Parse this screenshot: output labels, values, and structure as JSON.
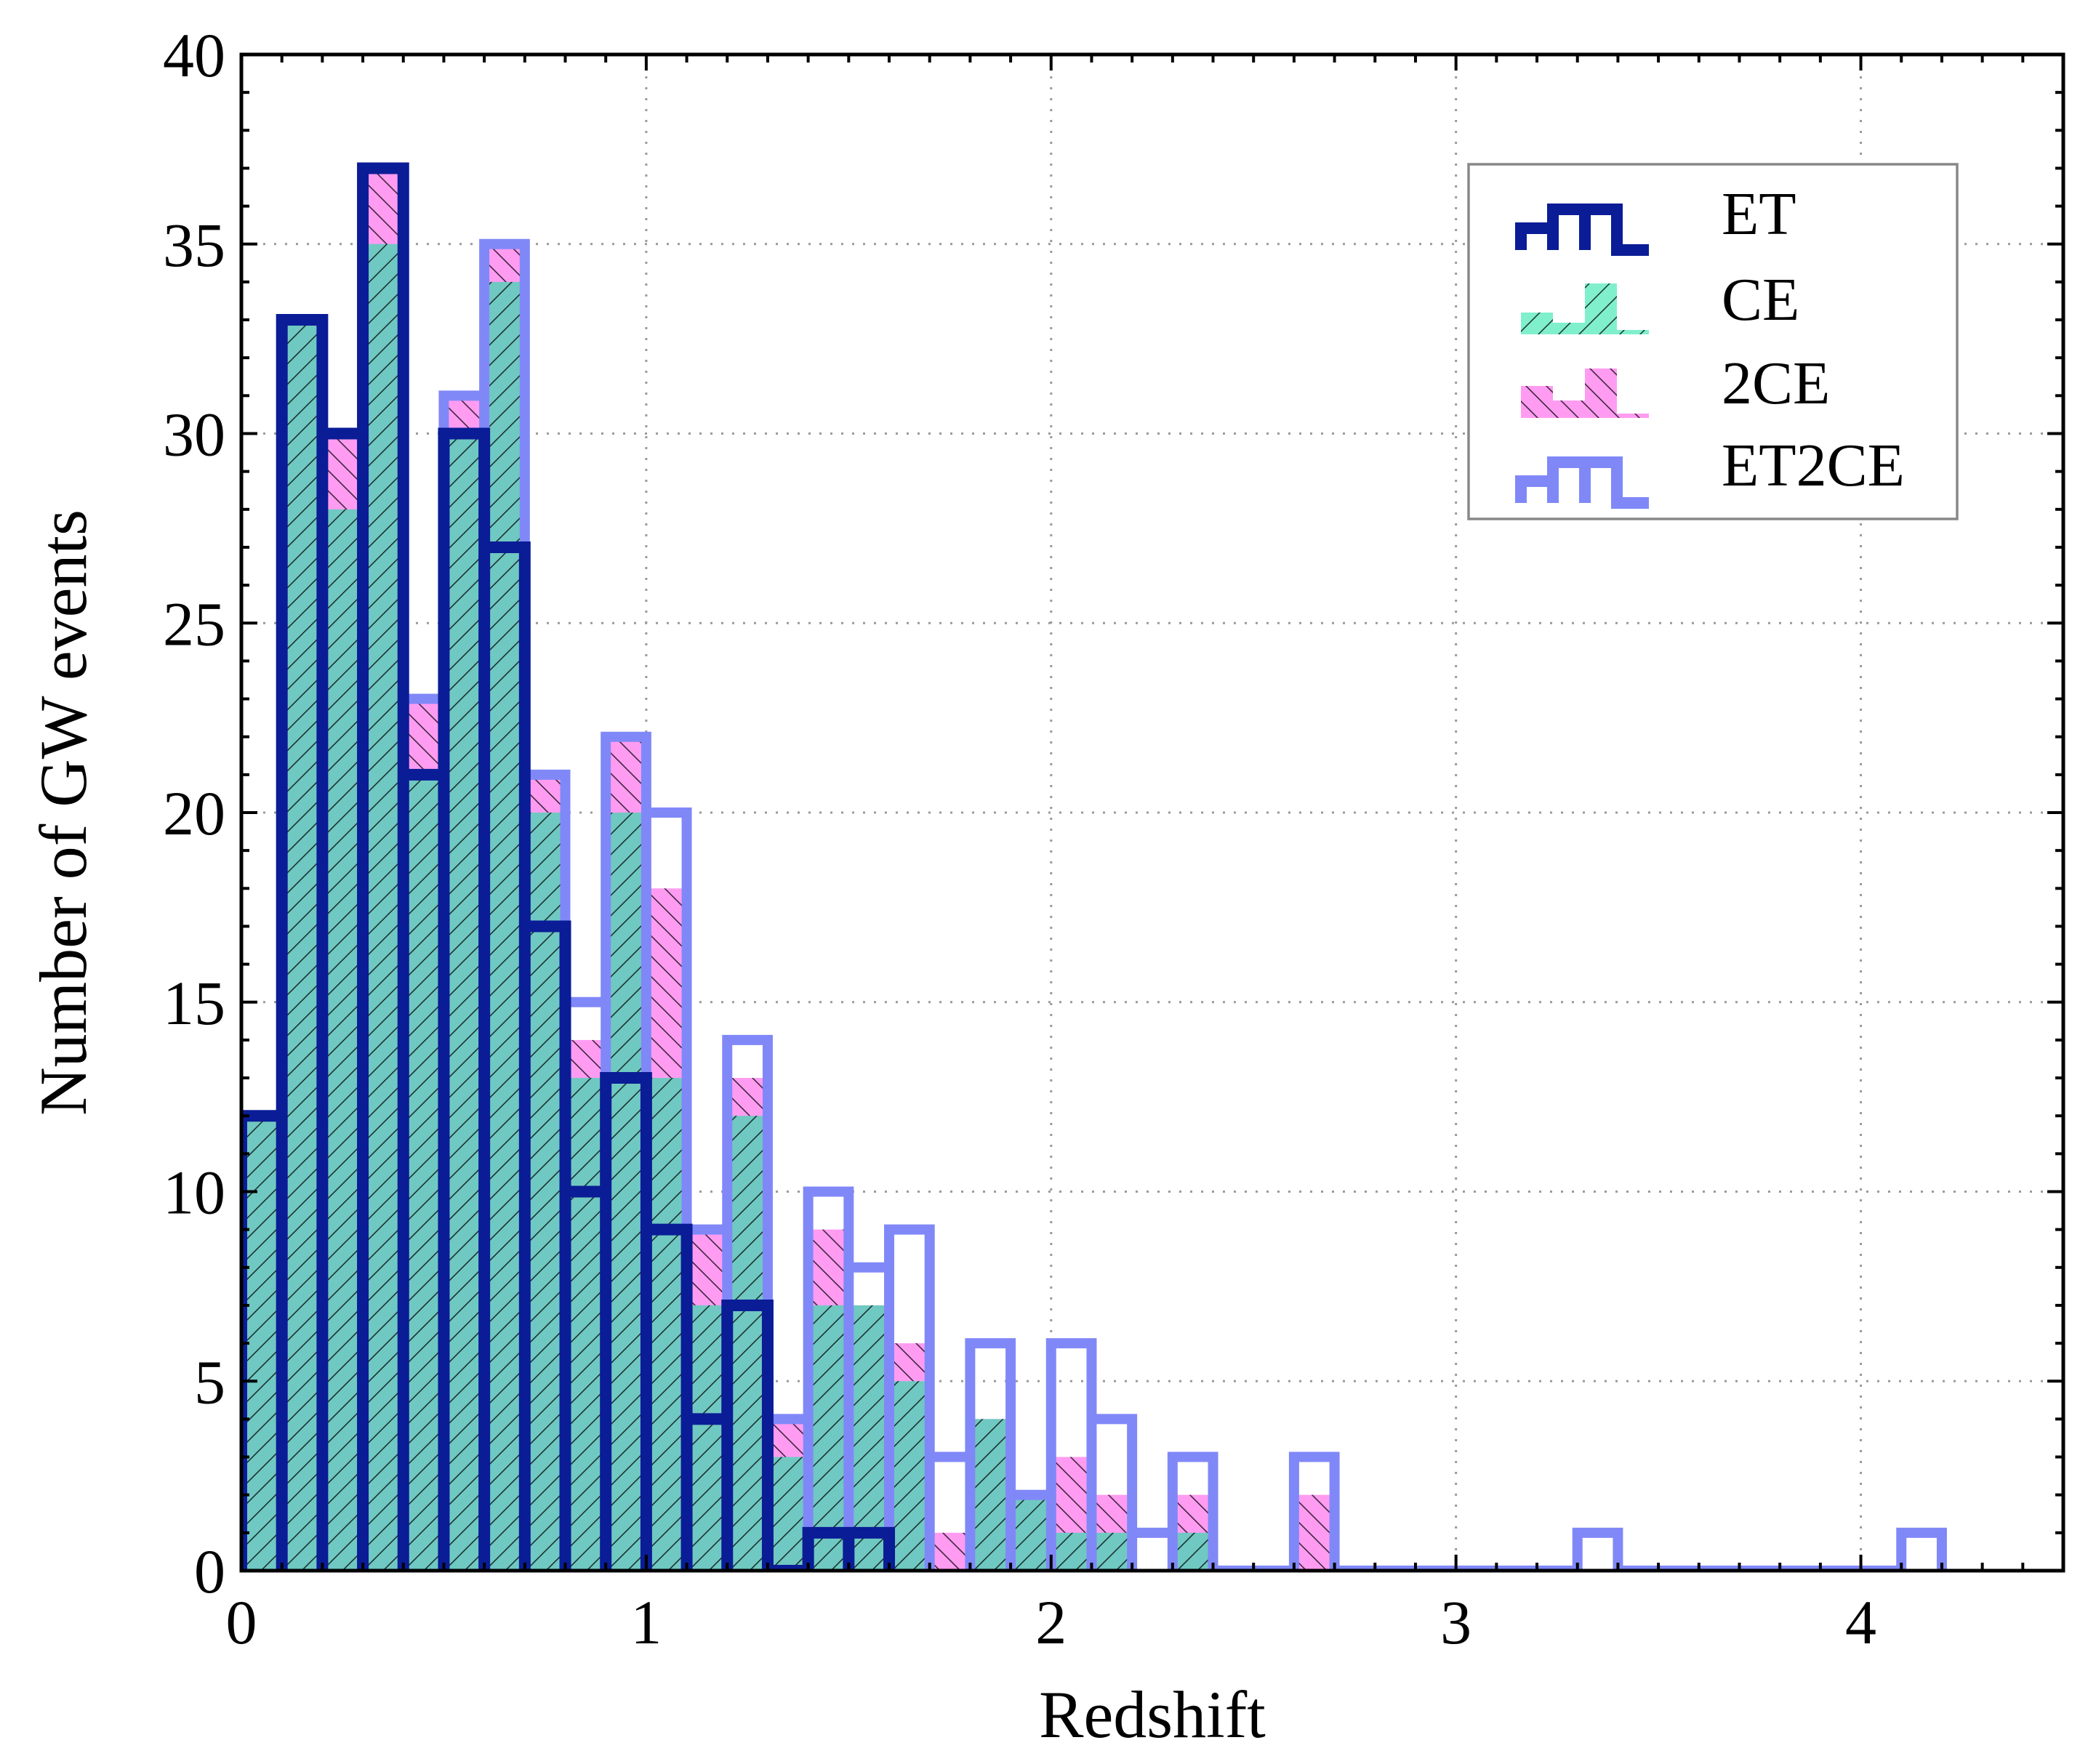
{
  "chart_data": {
    "type": "histogram",
    "xlabel": "Redshift",
    "ylabel": "Number of GW events",
    "xlim": [
      0,
      4.5
    ],
    "ylim": [
      0,
      40
    ],
    "grid": true,
    "legend_position": "top-right",
    "bin_width": 0.1,
    "x_ticks": [
      0,
      1,
      2,
      3,
      4
    ],
    "x_tick_labels": [
      "0",
      "1",
      "2",
      "3",
      "4"
    ],
    "y_ticks": [
      0,
      5,
      10,
      15,
      20,
      25,
      30,
      35,
      40
    ],
    "y_tick_labels": [
      "0",
      "5",
      "10",
      "15",
      "20",
      "25",
      "30",
      "35",
      "40"
    ],
    "colors": {
      "ET": "#0a1c96",
      "CE_fill": "#80f0cc",
      "2CE_fill": "#ff9cf2",
      "ET2CE": "#8088f8",
      "overlap": "#70c8c2"
    },
    "series": [
      {
        "name": "ET",
        "style": "step-outline",
        "bin_edges": [
          0,
          0.1,
          0.2,
          0.3,
          0.4,
          0.5,
          0.6,
          0.7,
          0.8,
          0.9,
          1.0,
          1.1,
          1.2,
          1.3,
          1.4,
          1.5,
          1.6
        ],
        "values": [
          12,
          33,
          30,
          37,
          21,
          30,
          27,
          17,
          10,
          13,
          9,
          4,
          7,
          0,
          1,
          1
        ]
      },
      {
        "name": "CE",
        "style": "filled-hatched",
        "bin_edges": [
          0,
          0.1,
          0.2,
          0.3,
          0.4,
          0.5,
          0.6,
          0.7,
          0.8,
          0.9,
          1.0,
          1.1,
          1.2,
          1.3,
          1.4,
          1.5,
          1.6,
          1.7,
          1.8,
          1.9,
          2.0,
          2.1,
          2.2,
          2.3,
          2.4
        ],
        "values": [
          12,
          33,
          28,
          35,
          21,
          30,
          34,
          20,
          13,
          20,
          13,
          7,
          12,
          3,
          7,
          7,
          5,
          0,
          4,
          2,
          1,
          1,
          0,
          1
        ]
      },
      {
        "name": "2CE",
        "style": "filled-hatched",
        "bin_edges": [
          0,
          0.1,
          0.2,
          0.3,
          0.4,
          0.5,
          0.6,
          0.7,
          0.8,
          0.9,
          1.0,
          1.1,
          1.2,
          1.3,
          1.4,
          1.5,
          1.6,
          1.7,
          1.8,
          1.9,
          2.0,
          2.1,
          2.2,
          2.3,
          2.4,
          2.5,
          2.6,
          2.7
        ],
        "values": [
          12,
          33,
          30,
          37,
          23,
          31,
          35,
          21,
          14,
          22,
          18,
          9,
          13,
          4,
          9,
          7,
          6,
          1,
          4,
          2,
          3,
          2,
          0,
          2,
          0,
          0,
          2
        ]
      },
      {
        "name": "ET2CE",
        "style": "step-outline",
        "bin_edges": [
          0,
          0.1,
          0.2,
          0.3,
          0.4,
          0.5,
          0.6,
          0.7,
          0.8,
          0.9,
          1.0,
          1.1,
          1.2,
          1.3,
          1.4,
          1.5,
          1.6,
          1.7,
          1.8,
          1.9,
          2.0,
          2.1,
          2.2,
          2.3,
          2.4,
          2.5,
          2.6,
          2.7,
          2.8,
          2.9,
          3.0,
          3.1,
          3.2,
          3.3,
          3.4,
          3.5,
          3.6,
          3.7,
          3.8,
          3.9,
          4.0,
          4.1,
          4.2
        ],
        "values": [
          12,
          33,
          30,
          37,
          23,
          31,
          35,
          21,
          15,
          22,
          20,
          9,
          14,
          4,
          10,
          8,
          9,
          3,
          6,
          2,
          6,
          4,
          1,
          3,
          0,
          0,
          3,
          0,
          0,
          0,
          0,
          0,
          0,
          1,
          0,
          0,
          0,
          0,
          0,
          0,
          0,
          1
        ]
      }
    ]
  }
}
